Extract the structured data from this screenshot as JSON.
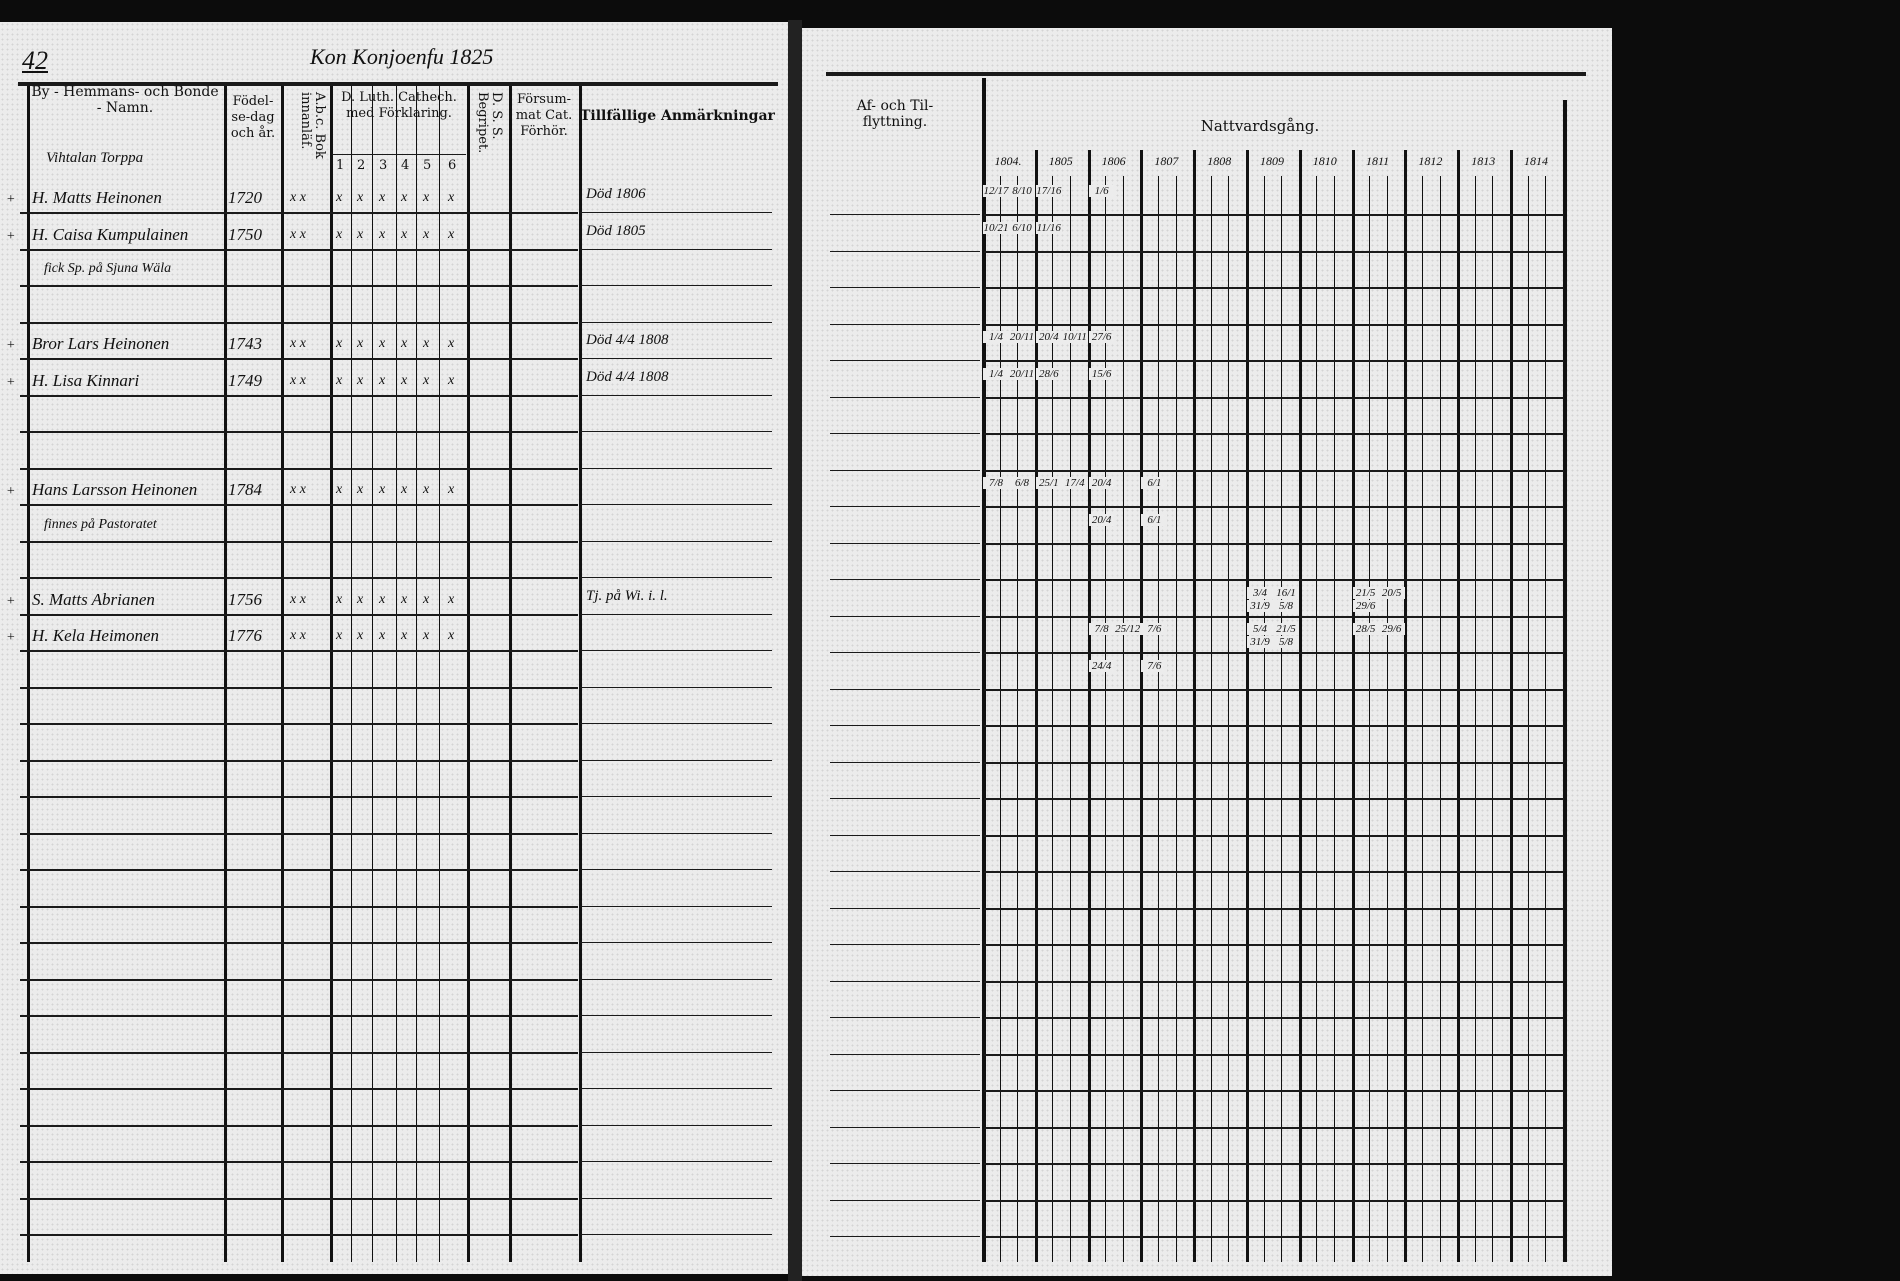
{
  "page_number": "42",
  "page_heading": "Kon Konjoenfu 1825",
  "left_headers": {
    "name": "By - Hemmans- och Bonde - Namn.",
    "birth": "Födel-se-dag och år.",
    "abc": "A.b.c. Bok innanläf.",
    "catechism": "D. Luth. Cathech. med Förklaring.",
    "catechism_parts": [
      "1",
      "2",
      "3",
      "4",
      "5",
      "6"
    ],
    "dss": "D. S. S. Begripet.",
    "missed": "Försum-mat Cat. Förhör.",
    "remarks": "Tillfällige Anmärkningar"
  },
  "village": "Vihtalan Torppa",
  "right_headers": {
    "moves": "Af- och Til-flyttning.",
    "communion": "Nattvardsgång.",
    "years": [
      "1804.",
      "1805",
      "1806",
      "1807",
      "1808",
      "1809",
      "1810",
      "1811",
      "1812",
      "1813",
      "1814"
    ]
  },
  "entries": [
    {
      "mark": "+",
      "name": "H. Matts Heinonen",
      "note": "",
      "year": "1720",
      "abc": "x x",
      "cat": [
        "x",
        "x",
        "x",
        "x",
        "x",
        "x"
      ],
      "remark": "Död 1806",
      "line": 0,
      "communion": [
        {
          "y": 0,
          "v": "12/17"
        },
        {
          "y": 0,
          "v": "8/10"
        },
        {
          "y": 1,
          "v": "17/16"
        },
        {
          "y": 2,
          "v": "1/6"
        }
      ]
    },
    {
      "mark": "+",
      "name": "H. Caisa Kumpulainen",
      "note": "fick Sp. på Sjuna Wäla",
      "year": "1750",
      "abc": "x x",
      "cat": [
        "x",
        "x",
        "x",
        "x",
        "x",
        "x"
      ],
      "remark": "Död 1805",
      "line": 1,
      "communion": [
        {
          "y": 0,
          "v": "10/21"
        },
        {
          "y": 0,
          "v": "6/10"
        },
        {
          "y": 1,
          "v": "11/16"
        }
      ]
    },
    {
      "mark": "+",
      "name": "Bror Lars Heinonen",
      "note": "",
      "year": "1743",
      "abc": "x x",
      "cat": [
        "x",
        "x",
        "x",
        "x",
        "x",
        "x"
      ],
      "remark": "Död 4/4 1808",
      "line": 4,
      "communion": [
        {
          "y": 0,
          "v": "1/4"
        },
        {
          "y": 0,
          "v": "20/11"
        },
        {
          "y": 1,
          "v": "20/4"
        },
        {
          "y": 1,
          "v": "10/11"
        },
        {
          "y": 2,
          "v": "27/6"
        }
      ]
    },
    {
      "mark": "+",
      "name": "H. Lisa Kinnari",
      "note": "",
      "year": "1749",
      "abc": "x x",
      "cat": [
        "x",
        "x",
        "x",
        "x",
        "x",
        "x"
      ],
      "remark": "Död 4/4 1808",
      "line": 5,
      "communion": [
        {
          "y": 0,
          "v": "1/4"
        },
        {
          "y": 0,
          "v": "20/11"
        },
        {
          "y": 1,
          "v": "28/6"
        },
        {
          "y": 2,
          "v": "15/6"
        }
      ]
    },
    {
      "mark": "+",
      "name": "Hans Larsson Heinonen",
      "note": "finnes på Pastoratet",
      "year": "1784",
      "abc": "x x",
      "cat": [
        "x",
        "x",
        "x",
        "x",
        "x",
        "x"
      ],
      "remark": "",
      "line": 8,
      "communion": [
        {
          "y": 0,
          "v": "7/8"
        },
        {
          "y": 0,
          "v": "6/8"
        },
        {
          "y": 1,
          "v": "25/1"
        },
        {
          "y": 1,
          "v": "17/4"
        },
        {
          "y": 2,
          "v": "20/4"
        },
        {
          "y": 3,
          "v": "6/1"
        }
      ]
    },
    {
      "mark": "+",
      "name": "S. Matts Abrianen",
      "note": "",
      "year": "1756",
      "abc": "x x",
      "cat": [
        "x",
        "x",
        "x",
        "x",
        "x",
        "x"
      ],
      "remark": "Tj. på Wi. i. l.",
      "line": 11,
      "communion": [
        {
          "y": 5,
          "v": "3/4"
        },
        {
          "y": 5,
          "v": "16/1"
        },
        {
          "y": 5,
          "v": "31/9"
        },
        {
          "y": 5,
          "v": "5/8"
        },
        {
          "y": 7,
          "v": "21/5"
        },
        {
          "y": 7,
          "v": "20/5"
        },
        {
          "y": 7,
          "v": "29/6"
        }
      ]
    },
    {
      "mark": "+",
      "name": "H. Kela Heimonen",
      "note": "",
      "year": "1776",
      "abc": "x x",
      "cat": [
        "x",
        "x",
        "x",
        "x",
        "x",
        "x"
      ],
      "remark": "",
      "line": 12,
      "communion": [
        {
          "y": 2,
          "v": "7/8"
        },
        {
          "y": 2,
          "v": "25/12"
        },
        {
          "y": 3,
          "v": "7/6"
        },
        {
          "y": 5,
          "v": "5/4"
        },
        {
          "y": 5,
          "v": "21/5"
        },
        {
          "y": 5,
          "v": "31/9"
        },
        {
          "y": 5,
          "v": "5/8"
        },
        {
          "y": 7,
          "v": "28/5"
        },
        {
          "y": 7,
          "v": "29/6"
        }
      ]
    }
  ],
  "extra_communion": [
    {
      "y": 2,
      "line": 13,
      "v": "24/4"
    },
    {
      "y": 3,
      "line": 13,
      "v": "7/6"
    },
    {
      "y": 2,
      "line": 9,
      "v": "20/4"
    },
    {
      "y": 3,
      "line": 9,
      "v": "6/1"
    }
  ],
  "colors": {
    "paper": "#ececec",
    "ink": "#111111",
    "background": "#0c0c0c"
  }
}
